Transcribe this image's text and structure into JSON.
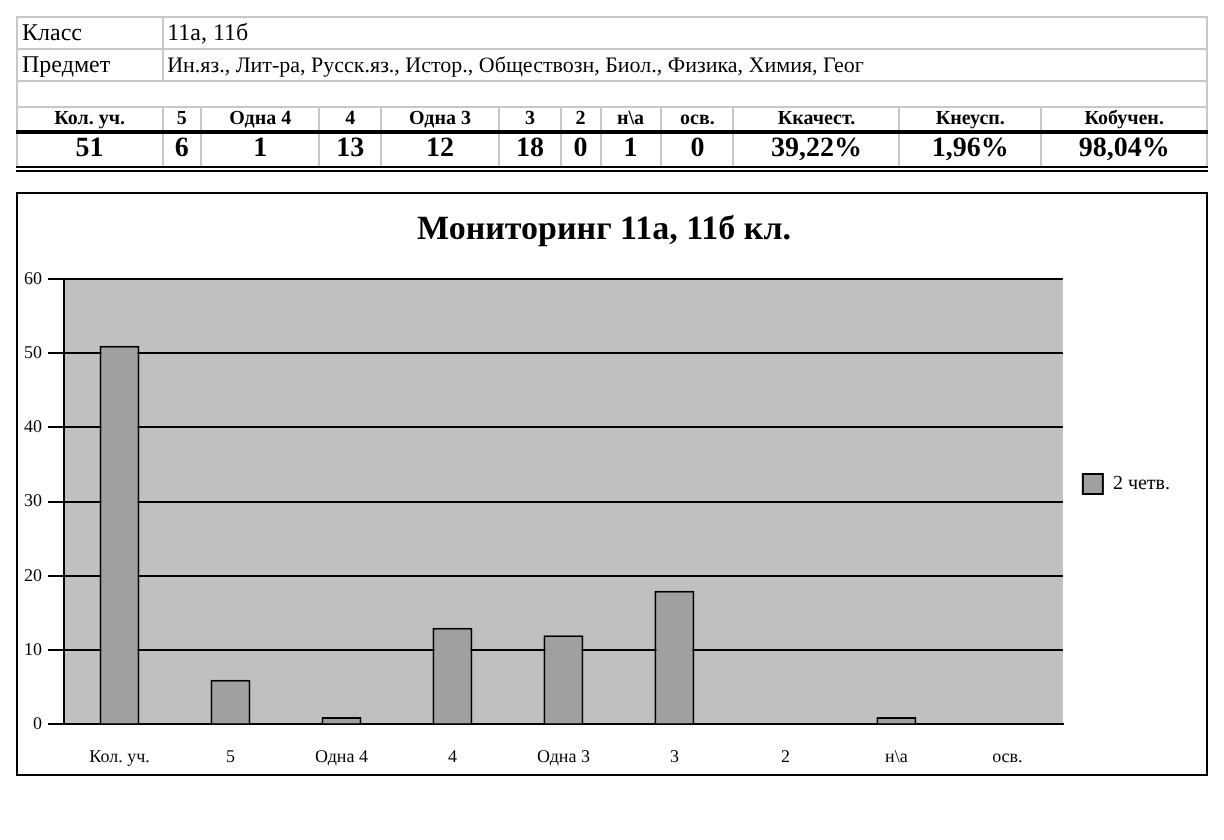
{
  "chart_data": {
    "type": "bar",
    "title": "Мониторинг 11а, 11б кл.",
    "categories": [
      "Кол. уч.",
      "5",
      "Одна 4",
      "4",
      "Одна 3",
      "3",
      "2",
      "н\\а",
      "осв."
    ],
    "series": [
      {
        "name": "2 четв.",
        "color": "#a0a0a0",
        "values": [
          51,
          6,
          1,
          13,
          12,
          18,
          0,
          1,
          0
        ]
      }
    ],
    "ylim": [
      0,
      60
    ],
    "yticks": [
      0,
      10,
      20,
      30,
      40,
      50,
      60
    ],
    "grid": "y",
    "legend": "right",
    "annotations": [
      "Класс",
      "11а, 11б",
      "Предмет",
      "Ин.яз., Лит-ра, Русск.яз., Истор., Обществозн, Биол., Физика, Химия, Геог",
      "Кол. уч.",
      "51",
      "5",
      "6",
      "Одна 4",
      "1",
      "4",
      "13",
      "Одна 3",
      "12",
      "3",
      "18",
      "2",
      "0",
      "н\\а",
      "1",
      "осв.",
      "0",
      "Ккачест.",
      "39,22%",
      "Кнеусп.",
      "1,96%",
      "Кобучен.",
      "98,04%"
    ]
  }
}
